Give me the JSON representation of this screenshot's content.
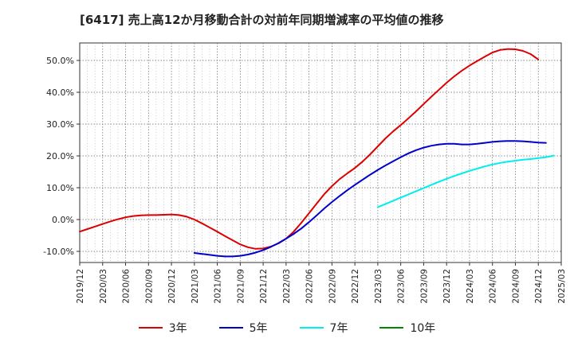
{
  "chart_data": {
    "type": "line",
    "title": "[6417]  売上高12か月移動合計の対前年同期増減率の平均値の推移",
    "xlabel": "",
    "ylabel": "",
    "ylim": [
      -13.5,
      55.5
    ],
    "y_ticks": [
      -10,
      0,
      10,
      20,
      30,
      40,
      50
    ],
    "y_tick_labels": [
      "-10.0%",
      "0.0%",
      "10.0%",
      "20.0%",
      "30.0%",
      "40.0%",
      "50.0%"
    ],
    "x_tick_labels": [
      "2019/12",
      "2020/03",
      "2020/06",
      "2020/09",
      "2020/12",
      "2021/03",
      "2021/06",
      "2021/09",
      "2021/12",
      "2022/03",
      "2022/06",
      "2022/09",
      "2022/12",
      "2023/03",
      "2023/06",
      "2023/09",
      "2023/12",
      "2024/03",
      "2024/06",
      "2024/09",
      "2024/12",
      "2025/03"
    ],
    "grid": true,
    "legend_position": "bottom",
    "series": [
      {
        "name": "3年",
        "color": "#dd0000",
        "points": [
          [
            "2019/12",
            -3.8
          ],
          [
            "2020/01",
            -3.0
          ],
          [
            "2020/02",
            -2.2
          ],
          [
            "2020/03",
            -1.4
          ],
          [
            "2020/04",
            -0.6
          ],
          [
            "2020/05",
            0.1
          ],
          [
            "2020/06",
            0.7
          ],
          [
            "2020/07",
            1.1
          ],
          [
            "2020/08",
            1.3
          ],
          [
            "2020/09",
            1.4
          ],
          [
            "2020/10",
            1.4
          ],
          [
            "2020/11",
            1.5
          ],
          [
            "2020/12",
            1.6
          ],
          [
            "2021/01",
            1.4
          ],
          [
            "2021/02",
            0.9
          ],
          [
            "2021/03",
            0.0
          ],
          [
            "2021/04",
            -1.2
          ],
          [
            "2021/05",
            -2.5
          ],
          [
            "2021/06",
            -3.8
          ],
          [
            "2021/07",
            -5.2
          ],
          [
            "2021/08",
            -6.5
          ],
          [
            "2021/09",
            -7.8
          ],
          [
            "2021/10",
            -8.7
          ],
          [
            "2021/11",
            -9.2
          ],
          [
            "2021/12",
            -9.1
          ],
          [
            "2022/01",
            -8.5
          ],
          [
            "2022/02",
            -7.5
          ],
          [
            "2022/03",
            -6.0
          ],
          [
            "2022/04",
            -3.8
          ],
          [
            "2022/05",
            -1.0
          ],
          [
            "2022/06",
            2.0
          ],
          [
            "2022/07",
            5.0
          ],
          [
            "2022/08",
            8.0
          ],
          [
            "2022/09",
            10.5
          ],
          [
            "2022/10",
            12.7
          ],
          [
            "2022/11",
            14.5
          ],
          [
            "2022/12",
            16.2
          ],
          [
            "2023/01",
            18.2
          ],
          [
            "2023/02",
            20.5
          ],
          [
            "2023/03",
            23.0
          ],
          [
            "2023/04",
            25.5
          ],
          [
            "2023/05",
            27.7
          ],
          [
            "2023/06",
            29.7
          ],
          [
            "2023/07",
            31.8
          ],
          [
            "2023/08",
            34.0
          ],
          [
            "2023/09",
            36.3
          ],
          [
            "2023/10",
            38.6
          ],
          [
            "2023/11",
            40.8
          ],
          [
            "2023/12",
            43.0
          ],
          [
            "2024/01",
            45.0
          ],
          [
            "2024/02",
            46.8
          ],
          [
            "2024/03",
            48.4
          ],
          [
            "2024/04",
            49.8
          ],
          [
            "2024/05",
            51.2
          ],
          [
            "2024/06",
            52.5
          ],
          [
            "2024/07",
            53.3
          ],
          [
            "2024/08",
            53.6
          ],
          [
            "2024/09",
            53.5
          ],
          [
            "2024/10",
            53.0
          ],
          [
            "2024/11",
            52.0
          ],
          [
            "2024/12",
            50.3
          ]
        ]
      },
      {
        "name": "5年",
        "color": "#0000cc",
        "points": [
          [
            "2021/03",
            -10.5
          ],
          [
            "2021/04",
            -10.8
          ],
          [
            "2021/05",
            -11.1
          ],
          [
            "2021/06",
            -11.4
          ],
          [
            "2021/07",
            -11.6
          ],
          [
            "2021/08",
            -11.6
          ],
          [
            "2021/09",
            -11.4
          ],
          [
            "2021/10",
            -11.0
          ],
          [
            "2021/11",
            -10.4
          ],
          [
            "2021/12",
            -9.6
          ],
          [
            "2022/01",
            -8.6
          ],
          [
            "2022/02",
            -7.4
          ],
          [
            "2022/03",
            -6.0
          ],
          [
            "2022/04",
            -4.5
          ],
          [
            "2022/05",
            -2.8
          ],
          [
            "2022/06",
            -0.8
          ],
          [
            "2022/07",
            1.3
          ],
          [
            "2022/08",
            3.5
          ],
          [
            "2022/09",
            5.5
          ],
          [
            "2022/10",
            7.4
          ],
          [
            "2022/11",
            9.2
          ],
          [
            "2022/12",
            10.9
          ],
          [
            "2023/01",
            12.5
          ],
          [
            "2023/02",
            14.1
          ],
          [
            "2023/03",
            15.6
          ],
          [
            "2023/04",
            17.0
          ],
          [
            "2023/05",
            18.3
          ],
          [
            "2023/06",
            19.6
          ],
          [
            "2023/07",
            20.8
          ],
          [
            "2023/08",
            21.8
          ],
          [
            "2023/09",
            22.6
          ],
          [
            "2023/10",
            23.2
          ],
          [
            "2023/11",
            23.6
          ],
          [
            "2023/12",
            23.8
          ],
          [
            "2024/01",
            23.8
          ],
          [
            "2024/02",
            23.6
          ],
          [
            "2024/03",
            23.6
          ],
          [
            "2024/04",
            23.8
          ],
          [
            "2024/05",
            24.1
          ],
          [
            "2024/06",
            24.4
          ],
          [
            "2024/07",
            24.6
          ],
          [
            "2024/08",
            24.7
          ],
          [
            "2024/09",
            24.7
          ],
          [
            "2024/10",
            24.6
          ],
          [
            "2024/11",
            24.4
          ],
          [
            "2024/12",
            24.2
          ],
          [
            "2025/01",
            24.1
          ]
        ]
      },
      {
        "name": "7年",
        "color": "#00eeee",
        "points": [
          [
            "2023/03",
            3.9
          ],
          [
            "2023/04",
            4.9
          ],
          [
            "2023/05",
            5.9
          ],
          [
            "2023/06",
            6.9
          ],
          [
            "2023/07",
            7.9
          ],
          [
            "2023/08",
            8.9
          ],
          [
            "2023/09",
            9.9
          ],
          [
            "2023/10",
            10.9
          ],
          [
            "2023/11",
            11.9
          ],
          [
            "2023/12",
            12.8
          ],
          [
            "2024/01",
            13.7
          ],
          [
            "2024/02",
            14.5
          ],
          [
            "2024/03",
            15.3
          ],
          [
            "2024/04",
            16.0
          ],
          [
            "2024/05",
            16.7
          ],
          [
            "2024/06",
            17.3
          ],
          [
            "2024/07",
            17.8
          ],
          [
            "2024/08",
            18.2
          ],
          [
            "2024/09",
            18.5
          ],
          [
            "2024/10",
            18.8
          ],
          [
            "2024/11",
            19.0
          ],
          [
            "2024/12",
            19.3
          ],
          [
            "2025/01",
            19.6
          ],
          [
            "2025/02",
            20.1
          ]
        ]
      },
      {
        "name": "10年",
        "color": "#008800",
        "points": []
      }
    ]
  }
}
